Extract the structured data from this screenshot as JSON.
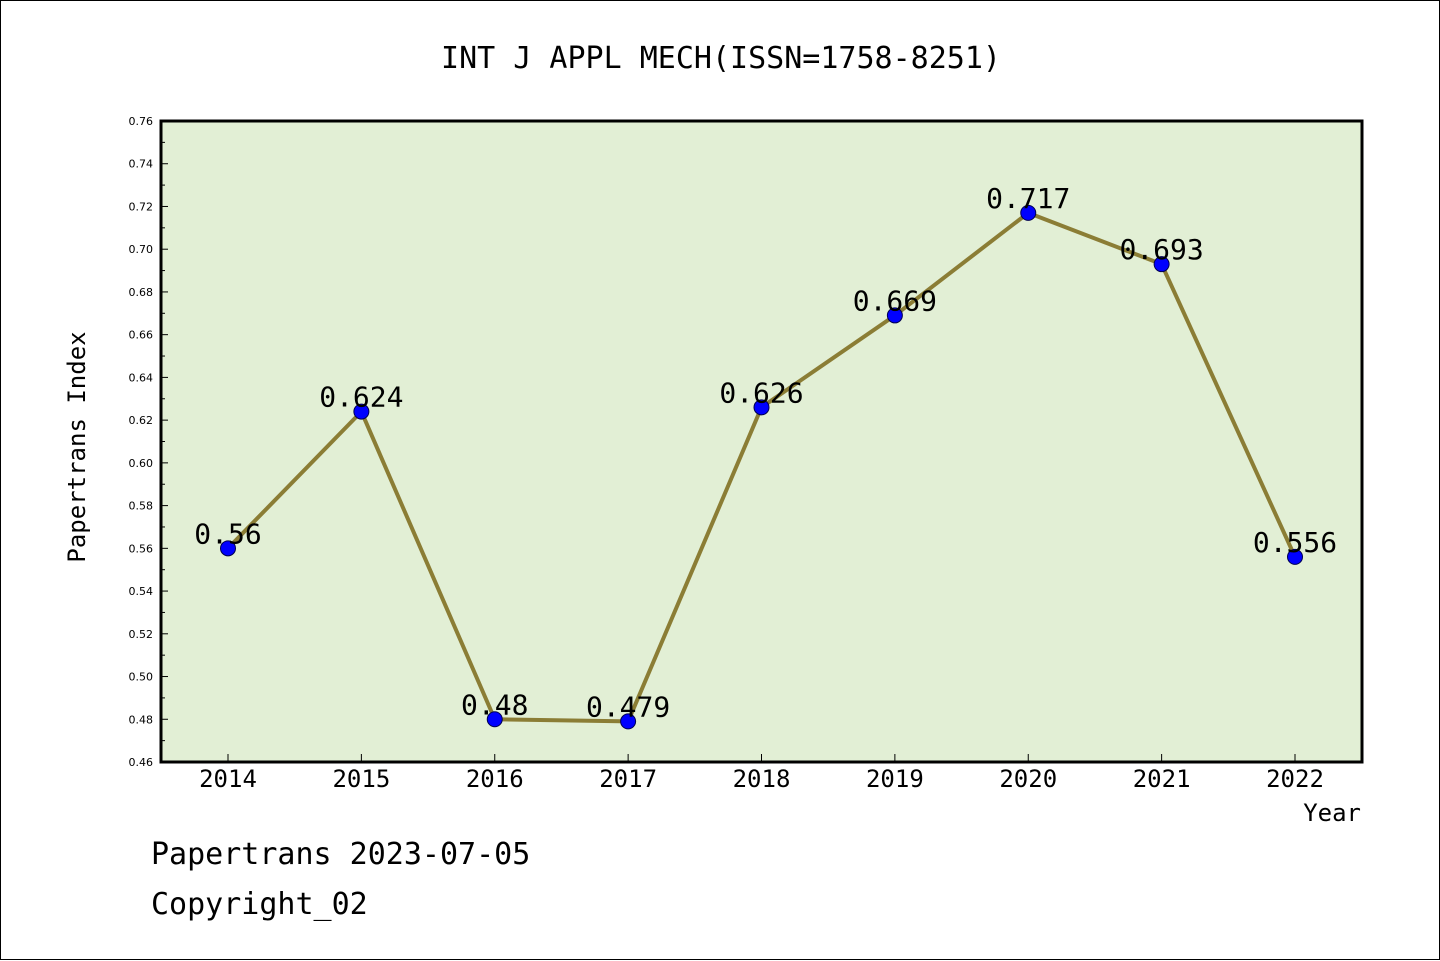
{
  "chart_data": {
    "type": "line",
    "title": "INT J APPL MECH(ISSN=1758-8251)",
    "xlabel": "Year",
    "ylabel": "Papertrans Index",
    "categories": [
      "2014",
      "2015",
      "2016",
      "2017",
      "2018",
      "2019",
      "2020",
      "2021",
      "2022"
    ],
    "values": [
      0.56,
      0.624,
      0.48,
      0.479,
      0.626,
      0.669,
      0.717,
      0.693,
      0.556
    ],
    "data_labels": [
      "0.56",
      "0.624",
      "0.48",
      "0.479",
      "0.626",
      "0.669",
      "0.717",
      "0.693",
      "0.556"
    ],
    "ylim": [
      0.46,
      0.76
    ],
    "y_ticks": [
      "0.46",
      "0.48",
      "0.50",
      "0.52",
      "0.54",
      "0.56",
      "0.58",
      "0.60",
      "0.62",
      "0.64",
      "0.66",
      "0.68",
      "0.70",
      "0.72",
      "0.74",
      "0.76"
    ],
    "grid": false,
    "colors": {
      "plot_background": "#e2efd5",
      "line": "#8b7d35",
      "marker": "#0000ff"
    }
  },
  "footer": {
    "line1": "Papertrans 2023-07-05",
    "line2": "Copyright_02"
  }
}
